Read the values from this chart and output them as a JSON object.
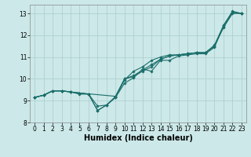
{
  "xlabel": "Humidex (Indice chaleur)",
  "xlim": [
    -0.5,
    23.5
  ],
  "ylim": [
    8.0,
    13.4
  ],
  "background_color": "#cce8e8",
  "grid_color": "#aacccc",
  "line_color": "#1a6e6a",
  "xticks": [
    0,
    1,
    2,
    3,
    4,
    5,
    6,
    7,
    8,
    9,
    10,
    11,
    12,
    13,
    14,
    15,
    16,
    17,
    18,
    19,
    20,
    21,
    22,
    23
  ],
  "yticks": [
    8,
    9,
    10,
    11,
    12,
    13
  ],
  "line1_x": [
    0,
    1,
    2,
    3,
    4,
    5,
    6,
    7,
    8,
    9,
    10,
    11,
    12,
    13,
    14,
    15,
    16,
    17,
    18,
    19,
    20,
    21,
    22,
    23
  ],
  "line1_y": [
    9.15,
    9.25,
    9.45,
    9.45,
    9.4,
    9.35,
    9.3,
    8.55,
    8.8,
    9.15,
    9.8,
    10.05,
    10.45,
    10.35,
    10.85,
    10.85,
    11.05,
    11.1,
    11.15,
    11.15,
    11.45,
    12.45,
    13.05,
    13.0
  ],
  "line2_x": [
    0,
    1,
    2,
    3,
    4,
    5,
    6,
    7,
    8,
    9,
    10,
    11,
    12,
    13,
    14,
    15,
    16,
    17,
    18,
    19,
    20,
    21,
    22,
    23
  ],
  "line2_y": [
    9.15,
    9.25,
    9.45,
    9.45,
    9.4,
    9.3,
    9.3,
    8.75,
    8.8,
    9.2,
    10.0,
    10.1,
    10.35,
    10.55,
    10.9,
    11.05,
    11.1,
    11.15,
    11.2,
    11.2,
    11.5,
    12.35,
    13.0,
    13.0
  ],
  "line3_x": [
    0,
    1,
    2,
    3,
    4,
    5,
    6,
    7,
    8,
    9,
    10,
    11,
    12,
    13,
    14,
    15,
    16,
    17,
    18,
    19,
    20,
    21,
    22,
    23
  ],
  "line3_y": [
    9.15,
    9.25,
    9.45,
    9.45,
    9.4,
    9.35,
    9.3,
    8.55,
    8.8,
    9.15,
    9.95,
    10.35,
    10.55,
    10.85,
    11.0,
    11.1,
    11.1,
    11.15,
    11.2,
    11.2,
    11.55,
    12.45,
    13.1,
    13.0
  ],
  "line4_x": [
    0,
    1,
    2,
    3,
    4,
    5,
    9,
    10,
    11,
    12,
    13,
    14,
    15,
    16,
    17,
    18,
    19,
    20,
    21,
    22,
    23
  ],
  "line4_y": [
    9.15,
    9.25,
    9.45,
    9.45,
    9.4,
    9.35,
    9.2,
    10.0,
    10.15,
    10.4,
    10.65,
    10.9,
    11.05,
    11.1,
    11.15,
    11.2,
    11.2,
    11.5,
    12.4,
    13.05,
    13.0
  ],
  "tick_fontsize": 5.5,
  "xlabel_fontsize": 7.0
}
